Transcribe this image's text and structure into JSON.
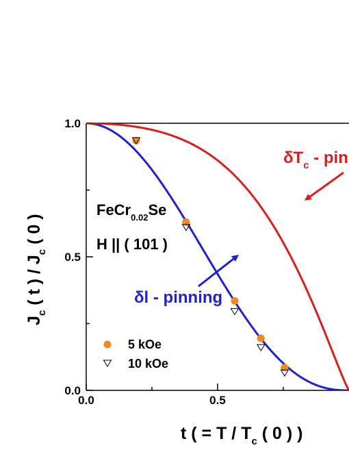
{
  "chart_data": {
    "type": "scatter",
    "xlabel": {
      "pre": "t ( = T / T",
      "sub": "c",
      "post": " ( 0 ) )"
    },
    "ylabel": {
      "p1": "J",
      "s1": "c",
      "p2": " ( t ) / J",
      "s2": "c",
      "p3": " ( 0 )"
    },
    "xlim": [
      0.0,
      1.0
    ],
    "ylim": [
      0.0,
      1.0
    ],
    "x_ticks": [
      0.0,
      0.5
    ],
    "x_tick_labels": [
      "0.0",
      "0.5"
    ],
    "y_ticks": [
      0.0,
      0.5,
      1.0
    ],
    "y_tick_labels": [
      "0.0",
      "0.5",
      "1.0"
    ],
    "grid": false,
    "legend_position": "bottom-left",
    "sample": {
      "compound_pre": "FeCr",
      "compound_sub": "0.02",
      "compound_post": "Se",
      "field": "H || ( 101 )"
    },
    "series": [
      {
        "name": "5 kOe",
        "marker": "filled-circle",
        "color": "#f28a1e",
        "x": [
          0.19,
          0.38,
          0.565,
          0.665,
          0.755
        ],
        "y": [
          0.935,
          0.63,
          0.335,
          0.195,
          0.085
        ]
      },
      {
        "name": "10 kOe",
        "marker": "open-triangle-down",
        "color": "#000000",
        "x": [
          0.19,
          0.38,
          0.565,
          0.665,
          0.755
        ],
        "y": [
          0.935,
          0.61,
          0.295,
          0.16,
          0.065
        ]
      }
    ],
    "curves": [
      {
        "model": "δl",
        "color": "#1f1fd6",
        "label_main": "δl - pinning",
        "formula": "(1 - t^2)^(5/2) (1 + t^2)^(-1/2)"
      },
      {
        "model": "δTc",
        "color": "#e01b1b",
        "label_main": "δT",
        "label_sub": "c",
        "label_post": " - pinning",
        "formula": "(1 - t^2)^(7/6) (1 + t^2)^(5/6)"
      }
    ]
  }
}
